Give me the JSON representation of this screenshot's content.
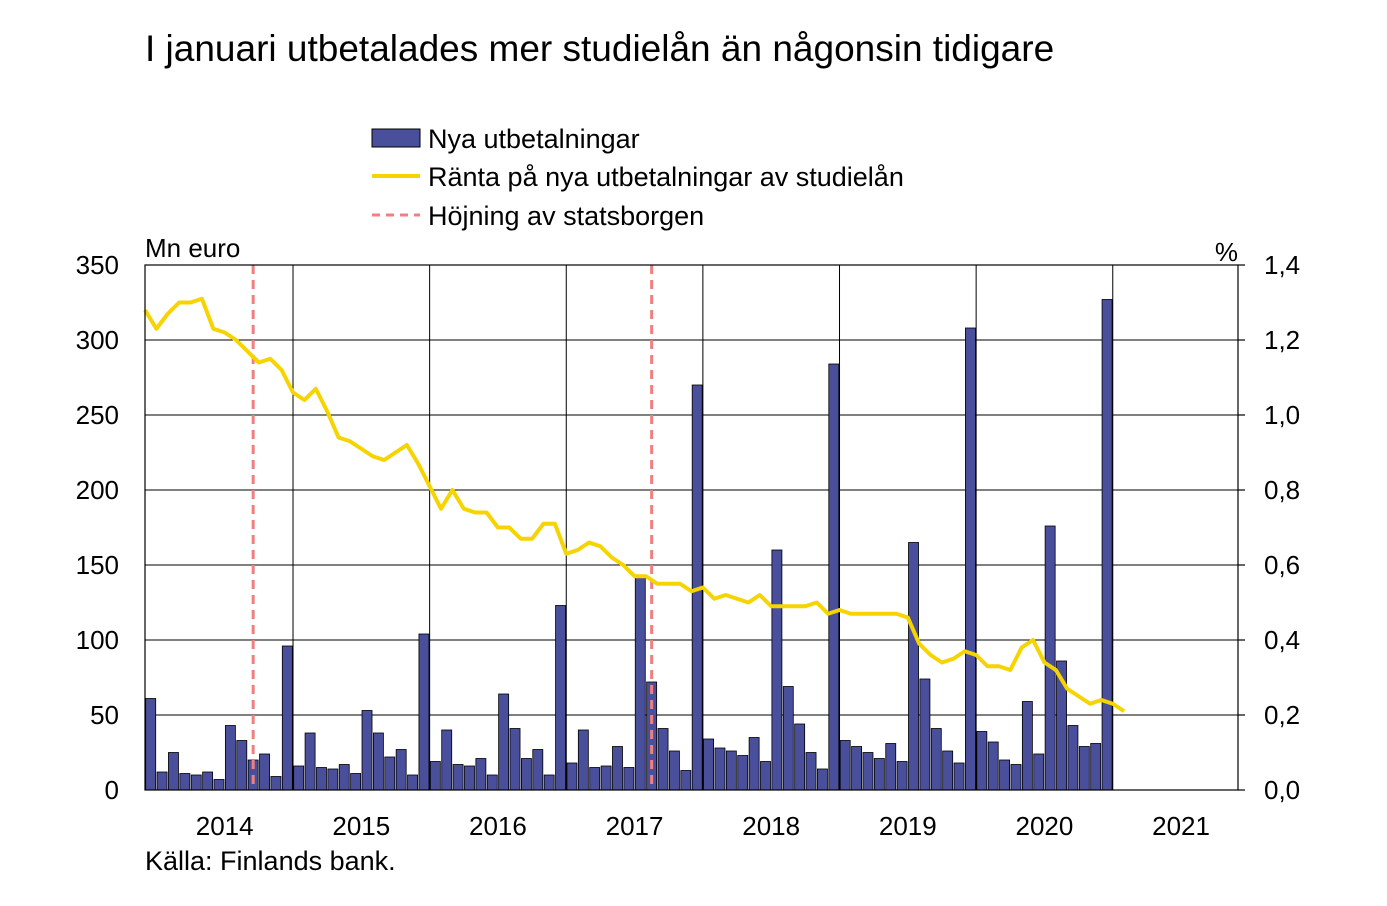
{
  "chart_data": {
    "type": "bar+line",
    "title": "I januari utbetalades mer studielån än någonsin tidigare",
    "source": "Källa: Finlands bank.",
    "left_axis": {
      "unit_label": "Mn euro",
      "min": 0,
      "max": 350,
      "ticks": [
        "0",
        "50",
        "100",
        "150",
        "200",
        "250",
        "300",
        "350"
      ]
    },
    "right_axis": {
      "unit_label": "%",
      "min": 0,
      "max": 1.4,
      "ticks": [
        "0,0",
        "0,2",
        "0,4",
        "0,6",
        "0,8",
        "1,0",
        "1,2",
        "1,4"
      ]
    },
    "x_axis": {
      "year_labels": [
        "2014",
        "2015",
        "2016",
        "2017",
        "2018",
        "2019",
        "2020",
        "2021"
      ],
      "start": "2013-12",
      "months_total": 96
    },
    "grid": "vertical lines at years, horizontal lines at left-axis ticks",
    "legend": {
      "position": "top-center",
      "entries": [
        {
          "name": "Nya utbetalningar",
          "kind": "bar",
          "color": "#4a4f9c"
        },
        {
          "name": "Ränta på nya utbetalningar av studielån",
          "kind": "line",
          "color": "#f5d400"
        },
        {
          "name": "Höjning av statsborgen",
          "kind": "dashed-line",
          "color": "#f08080"
        }
      ]
    },
    "series": [
      {
        "name": "Nya utbetalningar",
        "axis": "left",
        "values": [
          61,
          12,
          25,
          11,
          10,
          12,
          7,
          43,
          33,
          20,
          24,
          9,
          96,
          16,
          38,
          15,
          14,
          17,
          11,
          53,
          38,
          22,
          27,
          10,
          104,
          19,
          40,
          17,
          16,
          21,
          10,
          64,
          41,
          21,
          27,
          10,
          123,
          18,
          40,
          15,
          16,
          29,
          15,
          142,
          72,
          41,
          26,
          13,
          270,
          34,
          28,
          26,
          23,
          35,
          19,
          160,
          69,
          44,
          25,
          14,
          284,
          33,
          29,
          25,
          21,
          31,
          19,
          165,
          74,
          41,
          26,
          18,
          308,
          39,
          32,
          20,
          17,
          59,
          24,
          176,
          86,
          43,
          29,
          31,
          327
        ]
      },
      {
        "name": "Ränta på nya utbetalningar av studielån",
        "axis": "right",
        "values": [
          1.28,
          1.23,
          1.27,
          1.3,
          1.3,
          1.31,
          1.23,
          1.22,
          1.2,
          1.17,
          1.14,
          1.15,
          1.12,
          1.06,
          1.04,
          1.07,
          1.01,
          0.94,
          0.93,
          0.91,
          0.89,
          0.88,
          0.9,
          0.92,
          0.87,
          0.81,
          0.75,
          0.8,
          0.75,
          0.74,
          0.74,
          0.7,
          0.7,
          0.67,
          0.67,
          0.71,
          0.71,
          0.63,
          0.64,
          0.66,
          0.65,
          0.62,
          0.6,
          0.57,
          0.57,
          0.55,
          0.55,
          0.55,
          0.53,
          0.54,
          0.51,
          0.52,
          0.51,
          0.5,
          0.52,
          0.49,
          0.49,
          0.49,
          0.49,
          0.5,
          0.47,
          0.48,
          0.47,
          0.47,
          0.47,
          0.47,
          0.47,
          0.46,
          0.39,
          0.36,
          0.34,
          0.35,
          0.37,
          0.36,
          0.33,
          0.33,
          0.32,
          0.38,
          0.4,
          0.34,
          0.32,
          0.27,
          0.25,
          0.23,
          0.24,
          0.23,
          0.21
        ]
      }
    ],
    "events": [
      {
        "name": "Höjning av statsborgen",
        "date": "2014-09"
      },
      {
        "name": "Höjning av statsborgen",
        "date": "2017-08"
      }
    ]
  }
}
